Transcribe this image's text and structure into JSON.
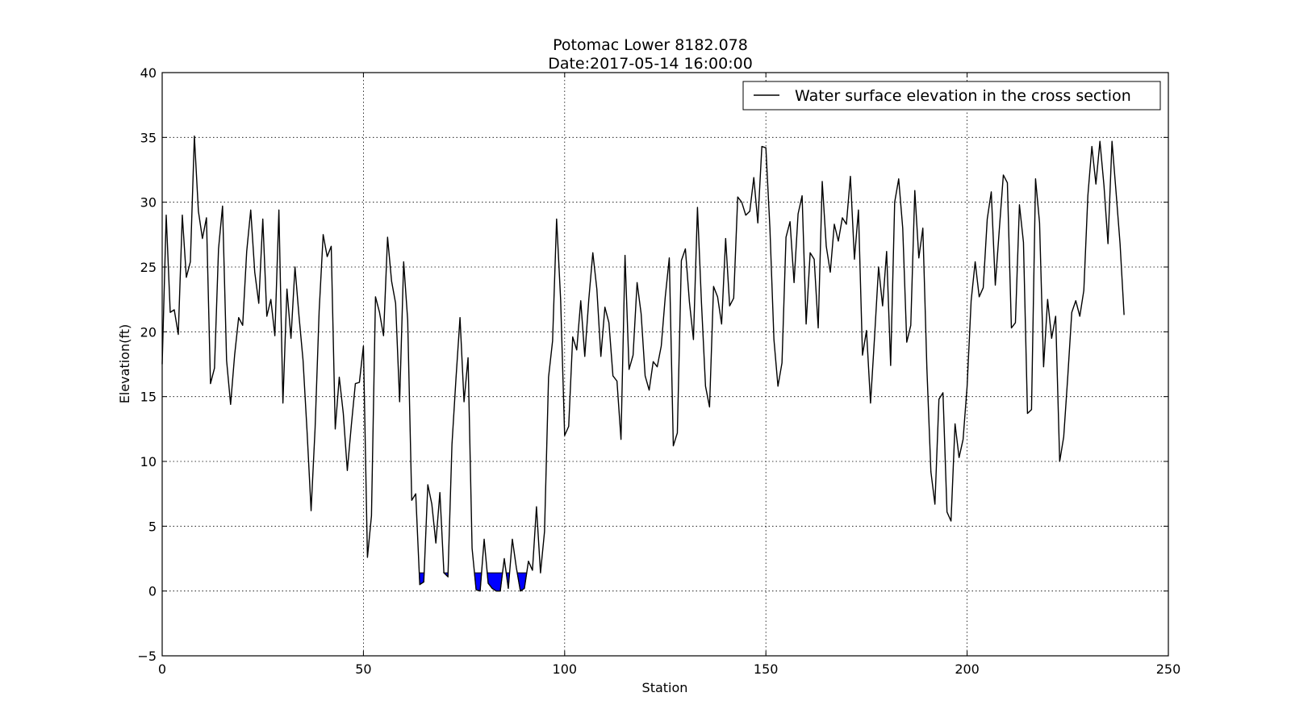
{
  "chart_data": {
    "type": "line",
    "title": "Potomac Lower 8182.078",
    "subtitle": "Date:2017-05-14 16:00:00",
    "xlabel": "Station",
    "ylabel": "Elevation(ft)",
    "xlim": [
      0,
      250
    ],
    "ylim": [
      -5,
      40
    ],
    "xticks": [
      0,
      50,
      100,
      150,
      200,
      250
    ],
    "yticks": [
      -5,
      0,
      5,
      10,
      15,
      20,
      25,
      30,
      35,
      40
    ],
    "grid": true,
    "legend_position": "upper right",
    "water_surface_elevation": 1.4,
    "water_color": "#0000ff",
    "line_color": "#000000",
    "series": [
      {
        "name": "Water surface elevation in the cross section",
        "x": [
          0,
          1,
          2,
          3,
          4,
          5,
          6,
          7,
          8,
          9,
          10,
          11,
          12,
          13,
          14,
          15,
          16,
          17,
          18,
          19,
          20,
          21,
          22,
          23,
          24,
          25,
          26,
          27,
          28,
          29,
          30,
          31,
          32,
          33,
          34,
          35,
          36,
          37,
          38,
          39,
          40,
          41,
          42,
          43,
          44,
          45,
          46,
          47,
          48,
          49,
          50,
          51,
          52,
          53,
          54,
          55,
          56,
          57,
          58,
          59,
          60,
          61,
          62,
          63,
          64,
          65,
          66,
          67,
          68,
          69,
          70,
          71,
          72,
          73,
          74,
          75,
          76,
          77,
          78,
          79,
          80,
          81,
          82,
          83,
          84,
          85,
          86,
          87,
          88,
          89,
          90,
          91,
          92,
          93,
          94,
          95,
          96,
          97,
          98,
          99,
          100,
          101,
          102,
          103,
          104,
          105,
          106,
          107,
          108,
          109,
          110,
          111,
          112,
          113,
          114,
          115,
          116,
          117,
          118,
          119,
          120,
          121,
          122,
          123,
          124,
          125,
          126,
          127,
          128,
          129,
          130,
          131,
          132,
          133,
          134,
          135,
          136,
          137,
          138,
          139,
          140,
          141,
          142,
          143,
          144,
          145,
          146,
          147,
          148,
          149,
          150,
          151,
          152,
          153,
          154,
          155,
          156,
          157,
          158,
          159,
          160,
          161,
          162,
          163,
          164,
          165,
          166,
          167,
          168,
          169,
          170,
          171,
          172,
          173,
          174,
          175,
          176,
          177,
          178,
          179,
          180,
          181,
          182,
          183,
          184,
          185,
          186,
          187,
          188,
          189,
          190,
          191,
          192,
          193,
          194,
          195,
          196,
          197,
          198,
          199,
          200,
          201,
          202,
          203,
          204,
          205,
          206,
          207,
          208,
          209,
          210,
          211,
          212,
          213,
          214,
          215,
          216,
          217,
          218,
          219,
          220,
          221,
          222,
          223,
          224,
          225,
          226,
          227,
          228,
          229,
          230,
          231,
          232,
          233,
          234,
          235,
          236,
          237,
          238,
          239
        ],
        "y": [
          17.5,
          29,
          21.5,
          21.7,
          19.8,
          29,
          24.2,
          25.4,
          35.1,
          29.3,
          27.2,
          28.8,
          16,
          17.2,
          26.4,
          29.7,
          17.8,
          14.4,
          18.2,
          21.1,
          20.5,
          26.2,
          29.4,
          24.6,
          22.2,
          28.7,
          21.2,
          22.5,
          19.7,
          29.4,
          14.5,
          23.3,
          19.5,
          25,
          21.2,
          17.8,
          12.3,
          6.2,
          12.6,
          21.6,
          27.5,
          25.8,
          26.6,
          12.5,
          16.5,
          13.7,
          9.3,
          12.8,
          16,
          16.1,
          18.9,
          2.6,
          5.8,
          22.7,
          21.5,
          19.7,
          27.3,
          23.9,
          22.2,
          14.6,
          25.4,
          20.9,
          7,
          7.5,
          0.5,
          0.7,
          8.2,
          6.7,
          3.7,
          7.6,
          1.4,
          1.1,
          11.3,
          16.4,
          21.1,
          14.6,
          18,
          3.3,
          0.1,
          0,
          4,
          0.6,
          0.2,
          0,
          0,
          2.5,
          0.2,
          4,
          1.8,
          0,
          0.2,
          2.3,
          1.6,
          6.5,
          1.4,
          4.6,
          16.5,
          19.3,
          28.7,
          22.5,
          12,
          12.7,
          19.6,
          18.6,
          22.4,
          18.1,
          22.5,
          26.1,
          23.3,
          18.1,
          21.9,
          20.7,
          16.6,
          16.2,
          11.7,
          25.9,
          17.1,
          18.2,
          23.8,
          21.4,
          16.6,
          15.5,
          17.7,
          17.3,
          18.9,
          22.7,
          25.7,
          11.2,
          12.2,
          25.5,
          26.4,
          22.3,
          19.4,
          29.6,
          22.2,
          15.8,
          14.2,
          23.5,
          22.7,
          20.6,
          27.2,
          22,
          22.6,
          30.4,
          30,
          29,
          29.3,
          31.9,
          28.4,
          34.3,
          34.2,
          28,
          19.4,
          15.8,
          17.6,
          27.3,
          28.5,
          23.8,
          29.1,
          30.5,
          20.6,
          26.1,
          25.6,
          20.3,
          31.6,
          26.6,
          24.6,
          28.3,
          27,
          28.8,
          28.3,
          32,
          25.6,
          29.4,
          18.2,
          20.1,
          14.5,
          19.6,
          25,
          22,
          26.2,
          17.4,
          30,
          31.8,
          28,
          19.2,
          20.5,
          30.9,
          25.7,
          28,
          17.2,
          9.2,
          6.7,
          14.8,
          15.3,
          6.1,
          5.4,
          12.9,
          10.3,
          11.7,
          15.8,
          22.4,
          25.4,
          22.7,
          23.4,
          28.7,
          30.8,
          23.6,
          27.9,
          32.1,
          31.5,
          20.3,
          20.7,
          29.8,
          26.9,
          13.7,
          14,
          31.8,
          28.4,
          17.3,
          22.5,
          19.5,
          21.2,
          10,
          11.9,
          16.5,
          21.5,
          22.4,
          21.2,
          23.2,
          30.5,
          34.3,
          31.4,
          34.7,
          31.3,
          26.8,
          34.7,
          30.8,
          26.8,
          21.3
        ]
      }
    ]
  }
}
